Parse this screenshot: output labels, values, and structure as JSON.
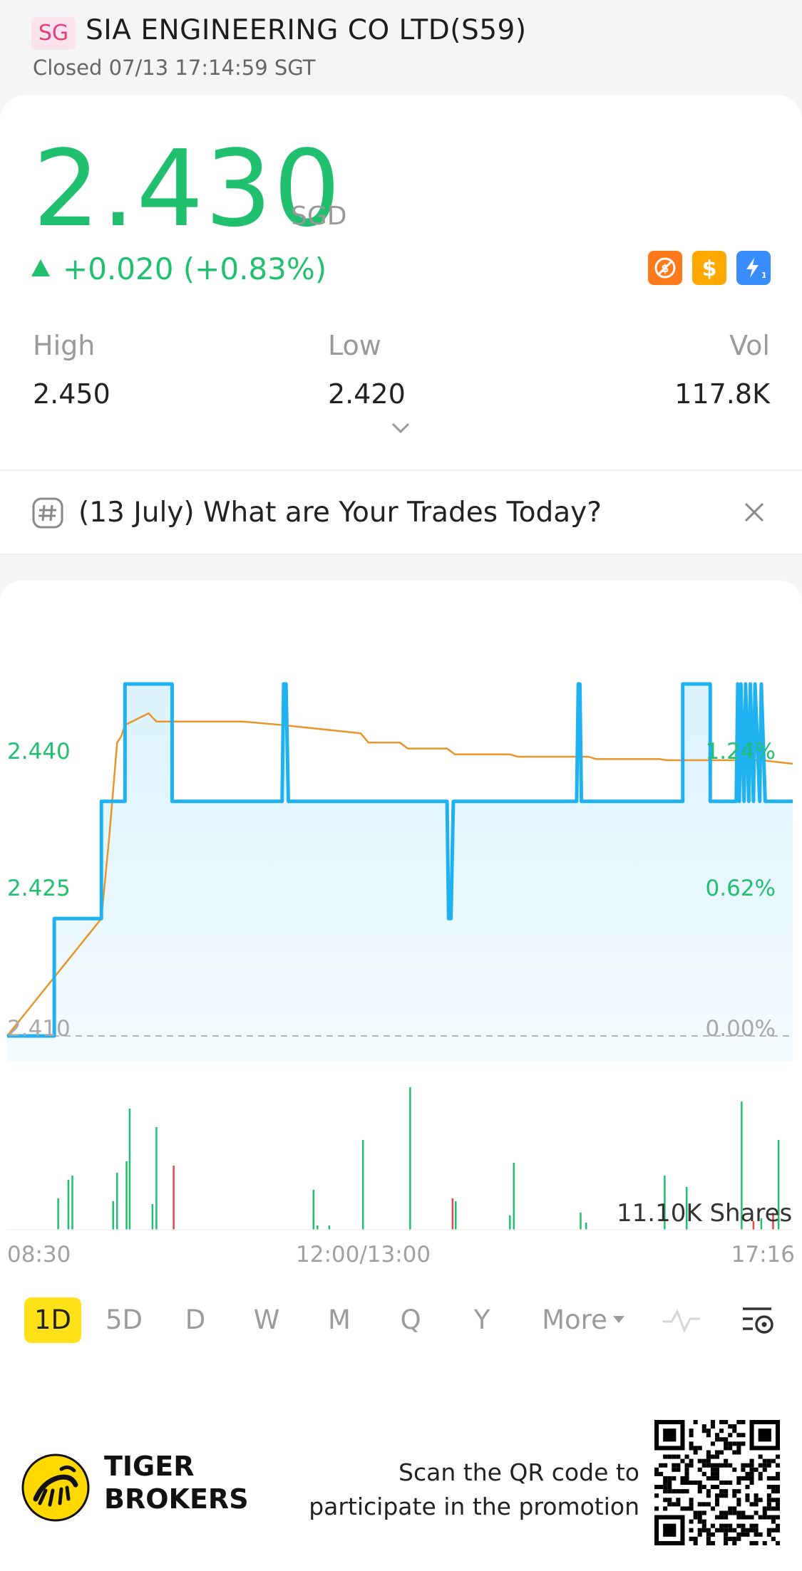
{
  "header": {
    "market_badge": "SG",
    "stock_name": "SIA ENGINEERING CO LTD(S59)",
    "status": "Closed 07/13 17:14:59 SGT"
  },
  "quote": {
    "price": "2.430",
    "currency": "SGD",
    "change": "+0.020 (+0.83%)",
    "stats": [
      {
        "label": "High",
        "value": "2.450"
      },
      {
        "label": "Low",
        "value": "2.420"
      },
      {
        "label": "Vol",
        "value": "117.8K"
      }
    ],
    "feature_icons": [
      "no-short-icon",
      "dollar-icon",
      "flash-icon"
    ]
  },
  "topic": {
    "text": "(13 July) What are Your Trades Today?"
  },
  "chart": {
    "left_axis": [
      "2.440",
      "2.425",
      "2.410"
    ],
    "right_axis": [
      "1.24%",
      "0.62%",
      "0.00%"
    ],
    "time_labels": [
      "08:30",
      "12:00/13:00",
      "17:16"
    ],
    "volume_label": "11.10K Shares"
  },
  "chart_data": {
    "type": "line",
    "series": [
      {
        "values_x": [
          0,
          0.06,
          0.06,
          0.12,
          0.12,
          0.15,
          0.15,
          0.21,
          0.21,
          0.35,
          0.352,
          0.355,
          0.358,
          0.36,
          0.56,
          0.562,
          0.565,
          0.568,
          0.57,
          0.725,
          0.727,
          0.729,
          0.731,
          0.733,
          0.86,
          0.86,
          0.895,
          0.895,
          0.928,
          0.93,
          0.932,
          0.934,
          0.938,
          0.94,
          0.944,
          0.946,
          0.95,
          0.952,
          0.958,
          0.96,
          0.965,
          1.0
        ],
        "values": [
          2.41,
          2.41,
          2.42,
          2.42,
          2.43,
          2.43,
          2.44,
          2.44,
          2.43,
          2.43,
          2.44,
          2.44,
          2.43,
          2.43,
          2.43,
          2.42,
          2.42,
          2.43,
          2.43,
          2.43,
          2.44,
          2.44,
          2.43,
          2.43,
          2.43,
          2.44,
          2.44,
          2.43,
          2.43,
          2.44,
          2.43,
          2.44,
          2.43,
          2.44,
          2.43,
          2.44,
          2.43,
          2.44,
          2.43,
          2.44,
          2.43,
          2.43
        ]
      },
      {
        "values_x": [
          0,
          0.12,
          0.13,
          0.14,
          0.145,
          0.15,
          0.18,
          0.19,
          0.3,
          0.35,
          0.45,
          0.46,
          0.5,
          0.51,
          0.56,
          0.57,
          0.64,
          0.65,
          0.74,
          0.75,
          0.83,
          0.84,
          0.96,
          1.0
        ],
        "values": [
          2.41,
          2.42,
          2.427,
          2.435,
          2.4355,
          2.4365,
          2.4375,
          2.4368,
          2.4368,
          2.4365,
          2.4358,
          2.435,
          2.435,
          2.4345,
          2.4345,
          2.434,
          2.434,
          2.4338,
          2.4338,
          2.4336,
          2.4336,
          2.4335,
          2.4335,
          2.4332
        ]
      }
    ],
    "ylim": [
      2.41,
      2.44
    ],
    "volume_bars": [
      {
        "x": 0.065,
        "v": 0.22,
        "c": "g"
      },
      {
        "x": 0.078,
        "v": 0.35,
        "c": "g"
      },
      {
        "x": 0.083,
        "v": 0.38,
        "c": "g"
      },
      {
        "x": 0.135,
        "v": 0.2,
        "c": "g"
      },
      {
        "x": 0.14,
        "v": 0.4,
        "c": "g"
      },
      {
        "x": 0.152,
        "v": 0.48,
        "c": "g"
      },
      {
        "x": 0.156,
        "v": 0.85,
        "c": "g"
      },
      {
        "x": 0.185,
        "v": 0.18,
        "c": "g"
      },
      {
        "x": 0.19,
        "v": 0.72,
        "c": "g"
      },
      {
        "x": 0.212,
        "v": 0.45,
        "c": "r"
      },
      {
        "x": 0.39,
        "v": 0.28,
        "c": "g"
      },
      {
        "x": 0.395,
        "v": 0.03,
        "c": "g"
      },
      {
        "x": 0.41,
        "v": 0.03,
        "c": "g"
      },
      {
        "x": 0.453,
        "v": 0.63,
        "c": "g"
      },
      {
        "x": 0.513,
        "v": 1.0,
        "c": "g"
      },
      {
        "x": 0.567,
        "v": 0.22,
        "c": "r"
      },
      {
        "x": 0.571,
        "v": 0.2,
        "c": "g"
      },
      {
        "x": 0.645,
        "v": 0.47,
        "c": "g"
      },
      {
        "x": 0.64,
        "v": 0.1,
        "c": "g"
      },
      {
        "x": 0.73,
        "v": 0.12,
        "c": "g"
      },
      {
        "x": 0.737,
        "v": 0.05,
        "c": "g"
      },
      {
        "x": 0.837,
        "v": 0.38,
        "c": "g"
      },
      {
        "x": 0.865,
        "v": 0.3,
        "c": "g"
      },
      {
        "x": 0.935,
        "v": 0.9,
        "c": "g"
      },
      {
        "x": 0.95,
        "v": 0.06,
        "c": "r"
      },
      {
        "x": 0.96,
        "v": 0.08,
        "c": "g"
      },
      {
        "x": 0.975,
        "v": 0.12,
        "c": "r"
      },
      {
        "x": 0.982,
        "v": 0.63,
        "c": "g"
      }
    ]
  },
  "periods": [
    {
      "label": "1D",
      "active": true
    },
    {
      "label": "5D"
    },
    {
      "label": "D"
    },
    {
      "label": "W"
    },
    {
      "label": "M"
    },
    {
      "label": "Q"
    },
    {
      "label": "Y"
    },
    {
      "label": "More"
    }
  ],
  "footer": {
    "brand_line1": "TIGER",
    "brand_line2": "BROKERS",
    "promo_line1": "Scan the QR code to",
    "promo_line2": "participate in the promotion"
  },
  "colors": {
    "up": "#20c06e",
    "down": "#e04a4a",
    "price_line": "#1fb1f0",
    "avg_line": "#e8952a",
    "highlight": "#ffe11a"
  }
}
